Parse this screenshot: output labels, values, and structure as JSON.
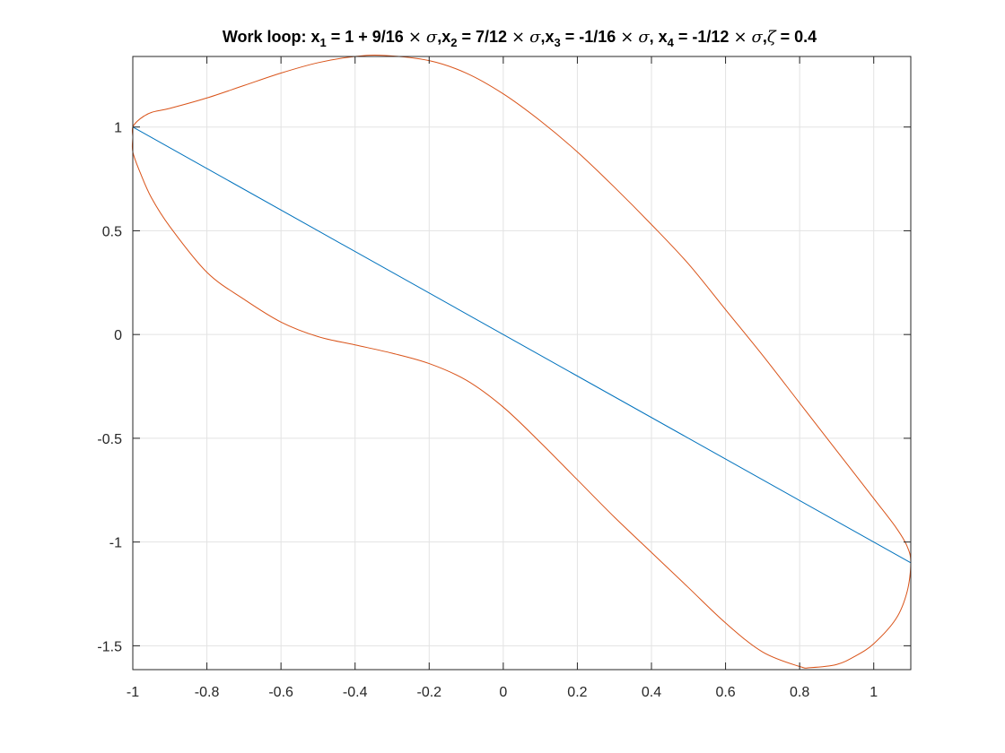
{
  "chart_data": {
    "type": "line",
    "title_parts": [
      {
        "text": "Work loop: x",
        "style": "b"
      },
      {
        "text": "1",
        "style": "sub"
      },
      {
        "text": " = 1 + 9/16 ",
        "style": "b"
      },
      {
        "text": "×",
        "style": "sym"
      },
      {
        "text": " ",
        "style": "b"
      },
      {
        "text": "σ",
        "style": "it"
      },
      {
        "text": ",x",
        "style": "b"
      },
      {
        "text": "2",
        "style": "sub"
      },
      {
        "text": " = 7/12 ",
        "style": "b"
      },
      {
        "text": "×",
        "style": "sym"
      },
      {
        "text": " ",
        "style": "b"
      },
      {
        "text": "σ",
        "style": "it"
      },
      {
        "text": ",x",
        "style": "b"
      },
      {
        "text": "3",
        "style": "sub"
      },
      {
        "text": " = -1/16 ",
        "style": "b"
      },
      {
        "text": "×",
        "style": "sym"
      },
      {
        "text": " ",
        "style": "b"
      },
      {
        "text": "σ",
        "style": "it"
      },
      {
        "text": ", x",
        "style": "b"
      },
      {
        "text": "4",
        "style": "sub"
      },
      {
        "text": " = -1/12 ",
        "style": "b"
      },
      {
        "text": "×",
        "style": "sym"
      },
      {
        "text": " ",
        "style": "b"
      },
      {
        "text": "σ",
        "style": "it"
      },
      {
        "text": ",",
        "style": "b"
      },
      {
        "text": "ζ",
        "style": "it"
      },
      {
        "text": " = 0.4",
        "style": "b"
      }
    ],
    "xlabel": "",
    "ylabel": "",
    "xlim": [
      -1,
      1.1
    ],
    "ylim": [
      -1.615,
      1.34
    ],
    "xticks": [
      -1,
      -0.8,
      -0.6,
      -0.4,
      -0.2,
      0,
      0.2,
      0.4,
      0.6,
      0.8,
      1
    ],
    "xtick_labels": [
      "-1",
      "-0.8",
      "-0.6",
      "-0.4",
      "-0.2",
      "0",
      "0.2",
      "0.4",
      "0.6",
      "0.8",
      "1"
    ],
    "yticks": [
      -1.5,
      -1,
      -0.5,
      0,
      0.5,
      1
    ],
    "ytick_labels": [
      "-1.5",
      "-1",
      "-0.5",
      "0",
      "0.5",
      "1"
    ],
    "grid": true,
    "box": true,
    "series": [
      {
        "color": "#0072BD",
        "kind": "line",
        "x": [
          -1,
          1.1
        ],
        "y": [
          1,
          -1.1
        ]
      },
      {
        "color": "#D95319",
        "kind": "closed-curve",
        "x": [
          -1,
          -0.98,
          -0.95,
          -0.9,
          -0.8,
          -0.7,
          -0.6,
          -0.5,
          -0.4,
          -0.32,
          -0.2,
          -0.1,
          0,
          0.1,
          0.2,
          0.3,
          0.4,
          0.5,
          0.6,
          0.7,
          0.8,
          0.9,
          1.0,
          1.06,
          1.09,
          1.1,
          1.09,
          1.06,
          1.0,
          0.95,
          0.9,
          0.83,
          0.8,
          0.7,
          0.6,
          0.5,
          0.4,
          0.3,
          0.2,
          0.1,
          0,
          -0.1,
          -0.2,
          -0.3,
          -0.4,
          -0.5,
          -0.6,
          -0.7,
          -0.8,
          -0.9,
          -0.95,
          -0.98,
          -1.0,
          -1.0
        ],
        "y": [
          1.0,
          1.04,
          1.07,
          1.09,
          1.14,
          1.2,
          1.26,
          1.31,
          1.34,
          1.345,
          1.32,
          1.26,
          1.16,
          1.03,
          0.88,
          0.71,
          0.53,
          0.34,
          0.12,
          -0.1,
          -0.33,
          -0.56,
          -0.79,
          -0.93,
          -1.02,
          -1.1,
          -1.24,
          -1.37,
          -1.49,
          -1.55,
          -1.59,
          -1.605,
          -1.6,
          -1.53,
          -1.39,
          -1.22,
          -1.05,
          -0.88,
          -0.7,
          -0.52,
          -0.35,
          -0.22,
          -0.14,
          -0.09,
          -0.05,
          -0.01,
          0.06,
          0.17,
          0.3,
          0.52,
          0.66,
          0.78,
          0.88,
          0.95
        ]
      }
    ]
  }
}
